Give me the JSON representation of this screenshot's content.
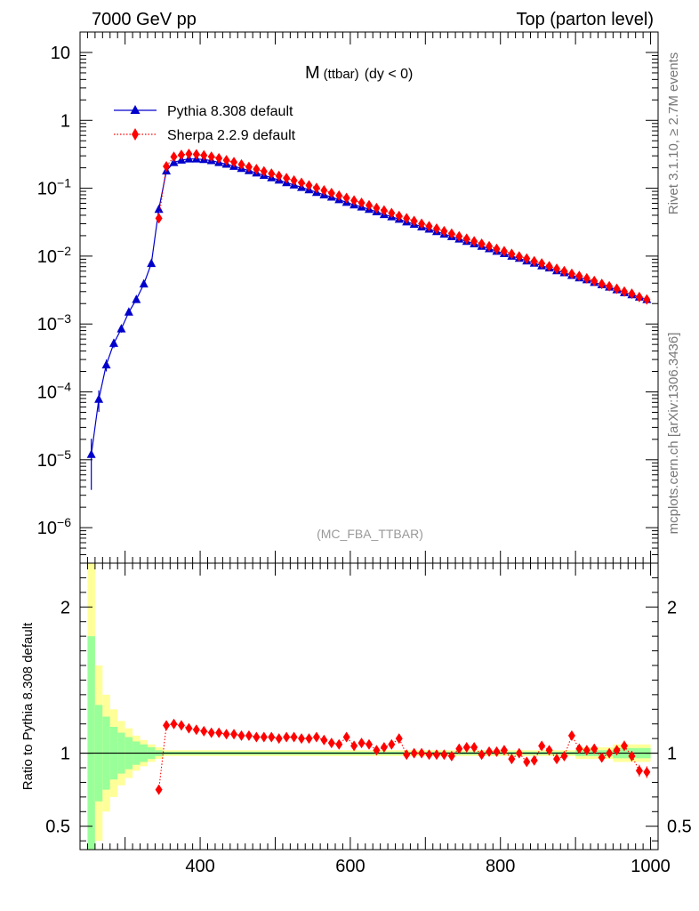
{
  "header": {
    "left": "7000 GeV pp",
    "right": "Top (parton level)"
  },
  "side_labels": {
    "rivet": "Rivet 3.1.10, ≥ 2.7M events",
    "mcplots": "mcplots.cern.ch [arXiv:1306.3436]"
  },
  "chart_data": [
    {
      "type": "line",
      "title": "M",
      "title_sub": "(ttbar)",
      "title_suffix": "(dy < 0)",
      "watermark": "(MC_FBA_TTBAR)",
      "yscale": "log",
      "xlim": [
        240,
        1010
      ],
      "ylim": [
        3e-07,
        20
      ],
      "y_ticks": [
        {
          "v": 1e-06,
          "label": "10",
          "exp": "−6"
        },
        {
          "v": 1e-05,
          "label": "10",
          "exp": "−5"
        },
        {
          "v": 0.0001,
          "label": "10",
          "exp": "−4"
        },
        {
          "v": 0.001,
          "label": "10",
          "exp": "−3"
        },
        {
          "v": 0.01,
          "label": "10",
          "exp": "−2"
        },
        {
          "v": 0.1,
          "label": "10",
          "exp": "−1"
        },
        {
          "v": 1,
          "label": "1",
          "exp": ""
        },
        {
          "v": 10,
          "label": "10",
          "exp": ""
        }
      ],
      "legend": [
        {
          "name": "Pythia 8.308 default",
          "color": "#0000cc",
          "marker": "triangle",
          "style": "solid"
        },
        {
          "name": "Sherpa 2.2.9 default",
          "color": "#ff0000",
          "marker": "diamond",
          "style": "dotted"
        }
      ],
      "series": [
        {
          "name": "Pythia 8.308 default",
          "color": "#0000cc",
          "x": [
            255,
            265,
            275,
            285,
            295,
            305,
            315,
            325,
            335,
            345,
            355,
            365,
            375,
            385,
            395,
            405,
            415,
            425,
            435,
            445,
            455,
            465,
            475,
            485,
            495,
            505,
            515,
            525,
            535,
            545,
            555,
            565,
            575,
            585,
            595,
            605,
            615,
            625,
            635,
            645,
            655,
            665,
            675,
            685,
            695,
            705,
            715,
            725,
            735,
            745,
            755,
            765,
            775,
            785,
            795,
            805,
            815,
            825,
            835,
            845,
            855,
            865,
            875,
            885,
            895,
            905,
            915,
            925,
            935,
            945,
            955,
            965,
            975,
            985,
            995
          ],
          "y": [
            1.2e-05,
            7.8e-05,
            0.00025,
            0.00052,
            0.00085,
            0.0015,
            0.0023,
            0.0039,
            0.0078,
            0.049,
            0.18,
            0.24,
            0.26,
            0.27,
            0.27,
            0.265,
            0.255,
            0.24,
            0.226,
            0.211,
            0.196,
            0.182,
            0.168,
            0.155,
            0.143,
            0.132,
            0.121,
            0.112,
            0.103,
            0.095,
            0.087,
            0.08,
            0.074,
            0.068,
            0.062,
            0.057,
            0.053,
            0.049,
            0.045,
            0.041,
            0.038,
            0.035,
            0.032,
            0.0295,
            0.027,
            0.025,
            0.023,
            0.0211,
            0.0194,
            0.0179,
            0.0165,
            0.0152,
            0.014,
            0.0129,
            0.0118,
            0.0109,
            0.01,
            0.0093,
            0.0085,
            0.0079,
            0.0072,
            0.0067,
            0.0061,
            0.0057,
            0.0052,
            0.0048,
            0.0045,
            0.0041,
            0.0038,
            0.0035,
            0.0032,
            0.0029,
            0.0027,
            0.0025,
            0.0023
          ],
          "err_rel": [
            0.7,
            0.35,
            0.2,
            0.15,
            0.12,
            0.1,
            0.08,
            0.07,
            0.05,
            0.03,
            0.02,
            0.01,
            0.01,
            0.01,
            0.01,
            0.01,
            0.01,
            0.01,
            0.01,
            0.01,
            0.01,
            0.01,
            0.01,
            0.01,
            0.01,
            0.01,
            0.01,
            0.01,
            0.01,
            0.01,
            0.01,
            0.01,
            0.01,
            0.01,
            0.01,
            0.01,
            0.01,
            0.01,
            0.01,
            0.01,
            0.01,
            0.01,
            0.01,
            0.01,
            0.01,
            0.015,
            0.015,
            0.015,
            0.015,
            0.015,
            0.015,
            0.015,
            0.015,
            0.015,
            0.015,
            0.02,
            0.02,
            0.02,
            0.02,
            0.02,
            0.02,
            0.02,
            0.02,
            0.025,
            0.025,
            0.025,
            0.025,
            0.03,
            0.03,
            0.03,
            0.03,
            0.03,
            0.04,
            0.04,
            0.04
          ]
        },
        {
          "name": "Sherpa 2.2.9 default",
          "color": "#ff0000",
          "x": [
            345,
            355,
            365,
            375,
            385,
            395,
            405,
            415,
            425,
            435,
            445,
            455,
            465,
            475,
            485,
            495,
            505,
            515,
            525,
            535,
            545,
            555,
            565,
            575,
            585,
            595,
            605,
            615,
            625,
            635,
            645,
            655,
            665,
            675,
            685,
            695,
            705,
            715,
            725,
            735,
            745,
            755,
            765,
            775,
            785,
            795,
            805,
            815,
            825,
            835,
            845,
            855,
            865,
            875,
            885,
            895,
            905,
            915,
            925,
            935,
            945,
            955,
            965,
            975,
            985,
            995
          ],
          "y": [
            0.036,
            0.21,
            0.29,
            0.31,
            0.32,
            0.315,
            0.305,
            0.292,
            0.276,
            0.258,
            0.242,
            0.224,
            0.206,
            0.191,
            0.177,
            0.164,
            0.152,
            0.141,
            0.13,
            0.12,
            0.11,
            0.101,
            0.093,
            0.085,
            0.078,
            0.072,
            0.066,
            0.061,
            0.056,
            0.051,
            0.047,
            0.043,
            0.039,
            0.036,
            0.033,
            0.03,
            0.0276,
            0.0254,
            0.0233,
            0.0214,
            0.0196,
            0.018,
            0.0165,
            0.0152,
            0.014,
            0.0128,
            0.0118,
            0.0108,
            0.0099,
            0.0092,
            0.0084,
            0.0078,
            0.0071,
            0.0065,
            0.006,
            0.0055,
            0.0051,
            0.0047,
            0.0043,
            0.0039,
            0.0036,
            0.0033,
            0.003,
            0.0028,
            0.0025,
            0.0023
          ]
        }
      ]
    },
    {
      "type": "line",
      "ylabel": "Ratio to Pythia 8.308 default",
      "xlim": [
        240,
        1010
      ],
      "ylim": [
        0.34,
        2.3
      ],
      "x_ticks": [
        400,
        600,
        800,
        1000
      ],
      "y_ticks": [
        {
          "v": 0.5,
          "label": "0.5"
        },
        {
          "v": 1,
          "label": "1"
        },
        {
          "v": 2,
          "label": "2"
        }
      ],
      "band": {
        "x": [
          250,
          260,
          270,
          280,
          290,
          300,
          310,
          320,
          330,
          340,
          350,
          1000
        ],
        "green": [
          0.8,
          0.33,
          0.25,
          0.18,
          0.14,
          0.11,
          0.08,
          0.06,
          0.04,
          0.02,
          0.01,
          0.03
        ],
        "yellow": [
          1.3,
          0.6,
          0.4,
          0.3,
          0.22,
          0.17,
          0.12,
          0.09,
          0.06,
          0.04,
          0.02,
          0.06
        ]
      },
      "series": [
        {
          "name": "Sherpa 2.2.9 default",
          "color": "#ff0000",
          "x": [
            345,
            355,
            365,
            375,
            385,
            395,
            405,
            415,
            425,
            435,
            445,
            455,
            465,
            475,
            485,
            495,
            505,
            515,
            525,
            535,
            545,
            555,
            565,
            575,
            585,
            595,
            605,
            615,
            625,
            635,
            645,
            655,
            665,
            675,
            685,
            695,
            705,
            715,
            725,
            735,
            745,
            755,
            765,
            775,
            785,
            795,
            805,
            815,
            825,
            835,
            845,
            855,
            865,
            875,
            885,
            895,
            905,
            915,
            925,
            935,
            945,
            955,
            965,
            975,
            985,
            995
          ],
          "y": [
            0.75,
            1.19,
            1.2,
            1.19,
            1.17,
            1.16,
            1.15,
            1.14,
            1.14,
            1.13,
            1.13,
            1.12,
            1.12,
            1.11,
            1.11,
            1.11,
            1.1,
            1.11,
            1.11,
            1.1,
            1.1,
            1.11,
            1.09,
            1.07,
            1.06,
            1.11,
            1.05,
            1.07,
            1.06,
            1.02,
            1.04,
            1.06,
            1.1,
            0.99,
            1.0,
            1.0,
            0.99,
            0.99,
            0.99,
            0.98,
            1.03,
            1.04,
            1.04,
            0.99,
            1.01,
            1.01,
            1.02,
            0.96,
            1.0,
            0.94,
            0.95,
            1.05,
            1.02,
            0.96,
            0.98,
            1.12,
            1.03,
            1.02,
            1.03,
            0.97,
            1.0,
            1.02,
            1.05,
            0.98,
            0.88,
            0.87
          ],
          "err": [
            0.02,
            0.01,
            0.01,
            0.01,
            0.01,
            0.01,
            0.01,
            0.01,
            0.01,
            0.01,
            0.01,
            0.01,
            0.01,
            0.01,
            0.01,
            0.01,
            0.01,
            0.01,
            0.01,
            0.01,
            0.01,
            0.01,
            0.01,
            0.01,
            0.01,
            0.01,
            0.01,
            0.01,
            0.01,
            0.01,
            0.01,
            0.01,
            0.01,
            0.01,
            0.01,
            0.01,
            0.01,
            0.01,
            0.01,
            0.01,
            0.015,
            0.015,
            0.015,
            0.015,
            0.015,
            0.015,
            0.015,
            0.015,
            0.015,
            0.02,
            0.02,
            0.02,
            0.02,
            0.02,
            0.02,
            0.025,
            0.025,
            0.025,
            0.03,
            0.03,
            0.03,
            0.03,
            0.035,
            0.035,
            0.04,
            0.04
          ]
        }
      ]
    }
  ]
}
